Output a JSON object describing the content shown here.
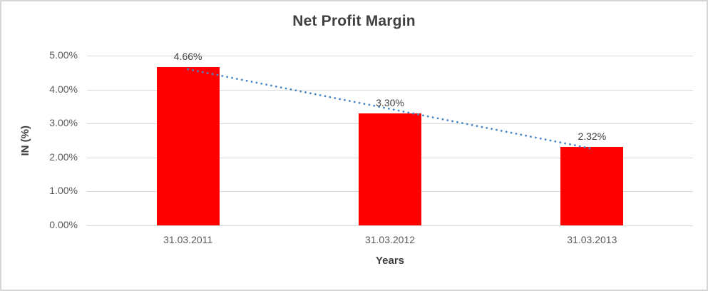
{
  "chart_data": {
    "type": "bar",
    "title": "Net Profit Margin",
    "xlabel": "Years",
    "ylabel": "IN (%)",
    "categories": [
      "31.03.2011",
      "31.03.2012",
      "31.03.2013"
    ],
    "values": [
      4.66,
      3.3,
      2.32
    ],
    "data_labels": [
      "4.66%",
      "3.30%",
      "2.32%"
    ],
    "y_ticks": [
      "0.00%",
      "1.00%",
      "2.00%",
      "3.00%",
      "4.00%",
      "5.00%"
    ],
    "ylim": [
      0,
      5
    ],
    "grid": true,
    "legend": false,
    "bar_color": "#ff0000",
    "gridline_color": "#d9d9d9",
    "trendline": {
      "type": "linear",
      "style": "dotted",
      "color": "#4a87c6",
      "start_value": 4.6,
      "end_value": 2.26
    }
  }
}
